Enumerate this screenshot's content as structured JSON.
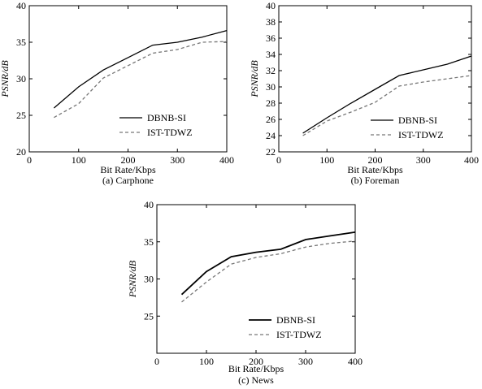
{
  "chart_data": [
    {
      "type": "line",
      "caption": "(a) Carphone",
      "xlabel": "Bit Rate/Kbps",
      "ylabel": "PSNR/dB",
      "xlim": [
        0,
        400
      ],
      "ylim": [
        20,
        40
      ],
      "xticks": [
        0,
        100,
        200,
        300,
        400
      ],
      "yticks": [
        20,
        25,
        30,
        35,
        40
      ],
      "grid": false,
      "legend_position": "lower-right",
      "series": [
        {
          "name": "DBNB-SI",
          "style": "solid",
          "color": "#000000",
          "x": [
            50,
            100,
            150,
            200,
            250,
            300,
            350,
            400
          ],
          "y": [
            26.0,
            28.9,
            31.2,
            32.9,
            34.6,
            35.0,
            35.7,
            36.6
          ]
        },
        {
          "name": "IST-TDWZ",
          "style": "dashed",
          "color": "#777777",
          "x": [
            50,
            100,
            150,
            200,
            250,
            300,
            350,
            400
          ],
          "y": [
            24.7,
            26.6,
            30.1,
            31.8,
            33.5,
            34.0,
            35.0,
            35.1
          ]
        }
      ]
    },
    {
      "type": "line",
      "caption": "(b) Foreman",
      "xlabel": "Bit Rate/Kbps",
      "ylabel": "PSNR/dB",
      "xlim": [
        0,
        400
      ],
      "ylim": [
        22,
        40
      ],
      "xticks": [
        0,
        100,
        200,
        300,
        400
      ],
      "yticks": [
        22,
        24,
        26,
        28,
        30,
        32,
        34,
        36,
        38,
        40
      ],
      "grid": false,
      "legend_position": "lower-right",
      "series": [
        {
          "name": "DBNB-SI",
          "style": "solid",
          "color": "#000000",
          "x": [
            50,
            100,
            150,
            200,
            250,
            300,
            350,
            400
          ],
          "y": [
            24.3,
            26.2,
            28.0,
            29.7,
            31.4,
            32.1,
            32.8,
            33.8
          ]
        },
        {
          "name": "IST-TDWZ",
          "style": "dashed",
          "color": "#777777",
          "x": [
            50,
            100,
            150,
            200,
            250,
            300,
            350,
            400
          ],
          "y": [
            24.0,
            25.8,
            26.9,
            28.1,
            30.1,
            30.6,
            31.0,
            31.4
          ]
        }
      ]
    },
    {
      "type": "line",
      "caption": "(c) News",
      "xlabel": "Bit Rate/Kbps",
      "ylabel": "PSNR/dB",
      "xlim": [
        0,
        400
      ],
      "ylim": [
        20,
        40
      ],
      "xticks": [
        0,
        100,
        200,
        300,
        400
      ],
      "yticks": [
        25,
        30,
        35,
        40
      ],
      "grid": false,
      "legend_position": "lower-right",
      "series": [
        {
          "name": "DBNB-SI",
          "style": "solid",
          "color": "#000000",
          "x": [
            50,
            100,
            150,
            200,
            250,
            300,
            350,
            400
          ],
          "y": [
            27.9,
            31.0,
            33.0,
            33.6,
            34.0,
            35.3,
            35.8,
            36.3
          ]
        },
        {
          "name": "IST-TDWZ",
          "style": "dashed",
          "color": "#777777",
          "x": [
            50,
            100,
            150,
            200,
            250,
            300,
            350,
            400
          ],
          "y": [
            26.9,
            29.6,
            32.0,
            32.9,
            33.4,
            34.3,
            34.8,
            35.1
          ]
        }
      ]
    }
  ]
}
